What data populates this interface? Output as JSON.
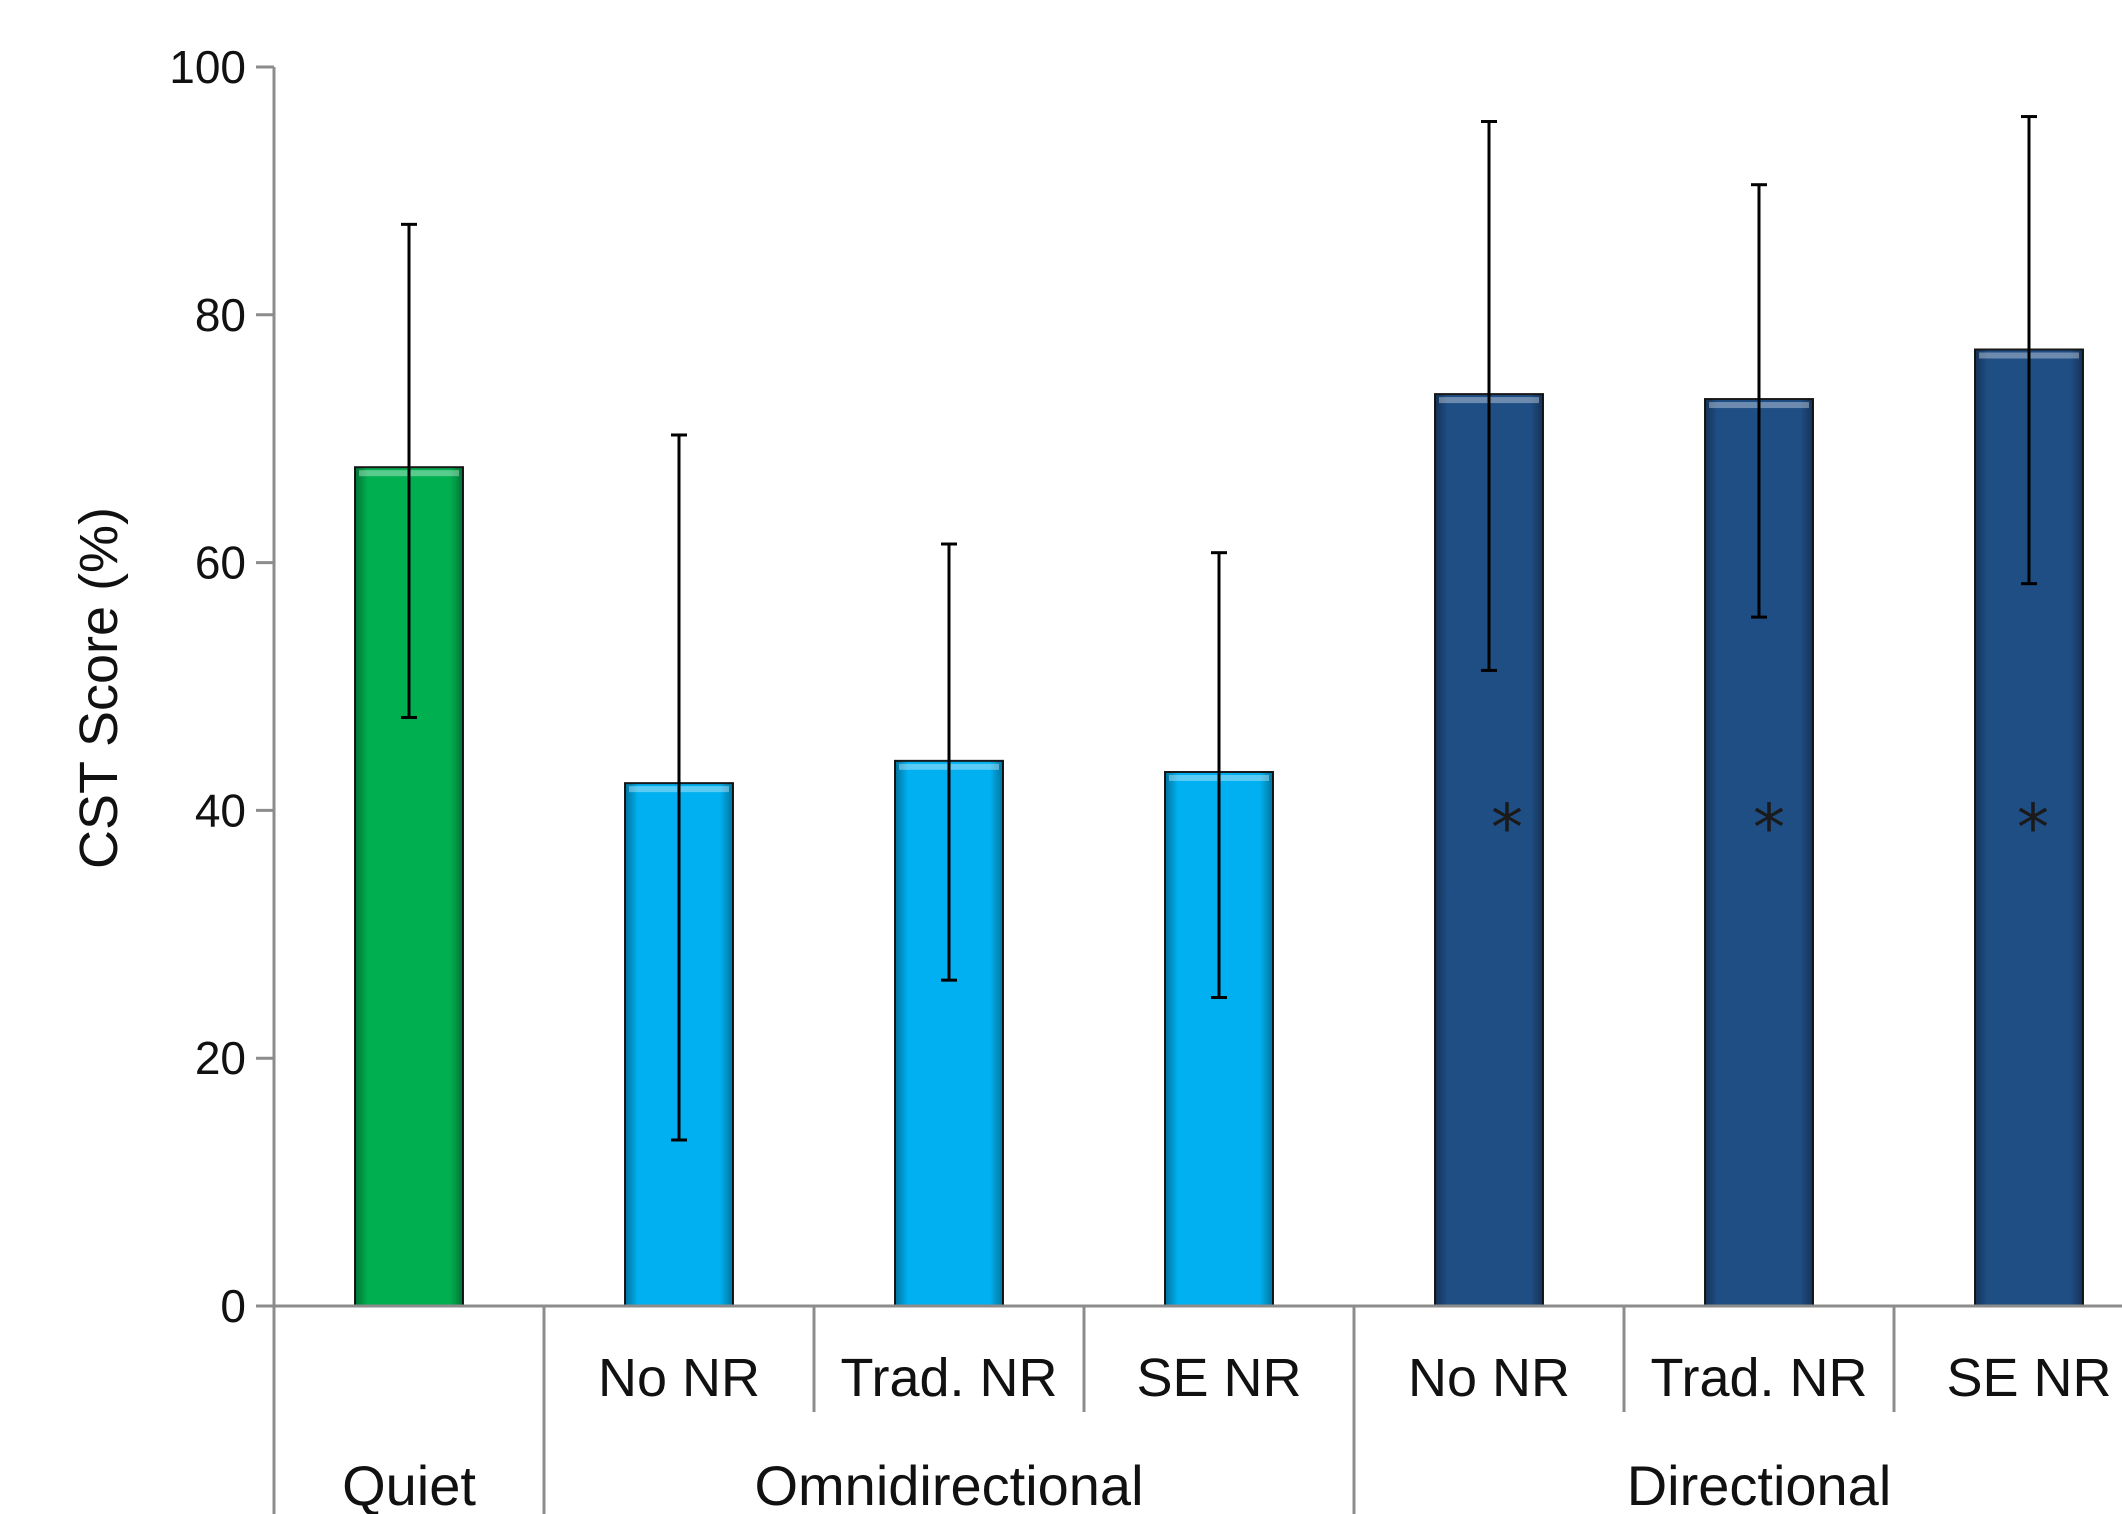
{
  "chart_data": {
    "type": "bar",
    "title": "",
    "ylabel": "CST Score (%)",
    "xlabel": "",
    "ylim": [
      0,
      100
    ],
    "yticks": [
      0,
      20,
      40,
      60,
      80,
      100
    ],
    "grid": false,
    "legend": "none",
    "categories": [
      "",
      "No NR",
      "Trad. NR",
      "SE NR",
      "No NR",
      "Trad. NR",
      "SE NR"
    ],
    "groups": [
      {
        "label": "Quiet",
        "span": [
          0,
          0
        ]
      },
      {
        "label": "Omnidirectional",
        "span": [
          1,
          3
        ]
      },
      {
        "label": "Directional",
        "span": [
          4,
          6
        ]
      }
    ],
    "values": [
      67.7,
      42.2,
      44.0,
      43.1,
      73.6,
      73.2,
      77.2
    ],
    "error_low": [
      47.5,
      13.4,
      26.3,
      24.9,
      51.3,
      55.6,
      58.3
    ],
    "error_high": [
      87.3,
      70.3,
      61.5,
      60.8,
      95.6,
      90.5,
      96.0
    ],
    "significance": [
      "",
      "",
      "",
      "",
      "*",
      "*",
      "*"
    ],
    "colors": [
      "#00b050",
      "#00b0f0",
      "#00b0f0",
      "#00b0f0",
      "#1f4e85",
      "#1f4e85",
      "#1f4e85"
    ]
  }
}
